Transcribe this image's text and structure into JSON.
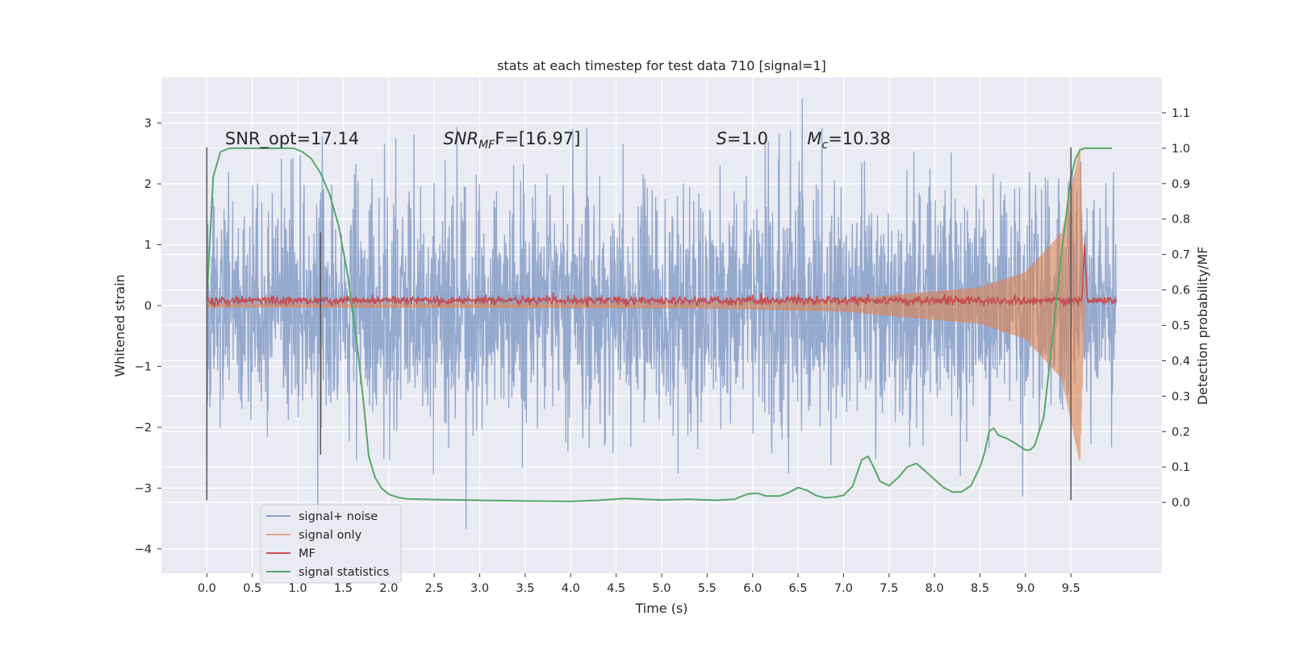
{
  "chart_data": {
    "type": "line",
    "title": "stats at each timestep for test data 710 [signal=1]",
    "xlabel": "Time (s)",
    "ylabel": "Whitened strain",
    "y2label": "Detection probability/MF",
    "xlim": [
      -0.5,
      10.5
    ],
    "ylim": [
      -4.4,
      3.75
    ],
    "y2lim": [
      -0.2,
      1.2
    ],
    "x_ticks": [
      "0.0",
      "0.5",
      "1.0",
      "1.5",
      "2.0",
      "2.5",
      "3.0",
      "3.5",
      "4.0",
      "4.5",
      "5.0",
      "5.5",
      "6.0",
      "6.5",
      "7.0",
      "7.5",
      "8.0",
      "8.5",
      "9.0",
      "9.5"
    ],
    "y_ticks": [
      "3",
      "2",
      "1",
      "0",
      "−1",
      "−2",
      "−3",
      "−4"
    ],
    "y2_ticks": [
      "1.1",
      "1.0",
      "0.9",
      "0.8",
      "0.7",
      "0.6",
      "0.5",
      "0.4",
      "0.3",
      "0.2",
      "0.1",
      "0.0"
    ],
    "grid": true,
    "legend_position": "lower-left",
    "annotations": {
      "snr_opt": {
        "x": 0.2,
        "y": 2.65,
        "text": "SNR_opt=17.14"
      },
      "snr_mf": {
        "x": 2.6,
        "y": 2.65,
        "prefix": "SNR",
        "sub": "MF",
        "suffix": "F=[16.97]"
      },
      "s": {
        "x": 5.6,
        "y": 2.65,
        "prefix": "S",
        "suffix": "=1.0"
      },
      "mc": {
        "x": 6.6,
        "y": 2.65,
        "prefix": "M",
        "sub": "c",
        "suffix": "=10.38"
      }
    },
    "vertical_markers": [
      {
        "x": 0.0,
        "y_top": 2.6,
        "y_bottom": -3.2
      },
      {
        "x": 1.25,
        "y_top": 1.2,
        "y_bottom": -2.45
      },
      {
        "x": 9.5,
        "y_top": 2.6,
        "y_bottom": -3.2
      }
    ],
    "series": [
      {
        "name": "signal+ noise",
        "color": "#4c72b0",
        "axis": "left",
        "t_range": [
          0.0,
          10.0
        ],
        "typical_amplitude": 1.0
      },
      {
        "name": "signal only",
        "color": "#dd8452",
        "axis": "left",
        "t_range": [
          0.0,
          9.65
        ],
        "amplitude_points": [
          [
            0.0,
            0.03
          ],
          [
            5.5,
            0.05
          ],
          [
            7.0,
            0.1
          ],
          [
            8.5,
            0.3
          ],
          [
            9.0,
            0.55
          ],
          [
            9.4,
            1.2
          ],
          [
            9.6,
            2.6
          ],
          [
            9.65,
            0.0
          ]
        ]
      },
      {
        "name": "MF",
        "color": "#c44e52",
        "axis": "left",
        "t_range": [
          0.0,
          10.0
        ],
        "baseline": 0.08,
        "spike": {
          "x": 9.65,
          "y": 1.0
        }
      },
      {
        "name": "signal statistics",
        "color": "#55a868",
        "axis": "right",
        "x": [
          0.0,
          0.07,
          0.15,
          0.25,
          0.4,
          0.6,
          0.8,
          0.95,
          1.05,
          1.15,
          1.25,
          1.35,
          1.45,
          1.55,
          1.65,
          1.72,
          1.78,
          1.85,
          1.92,
          2.0,
          2.1,
          2.2,
          2.5,
          3.0,
          3.5,
          4.0,
          4.3,
          4.6,
          4.8,
          5.0,
          5.3,
          5.6,
          5.8,
          5.95,
          6.05,
          6.15,
          6.3,
          6.4,
          6.5,
          6.6,
          6.7,
          6.8,
          6.9,
          7.0,
          7.1,
          7.2,
          7.27,
          7.33,
          7.4,
          7.5,
          7.6,
          7.7,
          7.8,
          7.9,
          8.0,
          8.1,
          8.2,
          8.3,
          8.4,
          8.5,
          8.55,
          8.6,
          8.65,
          8.7,
          8.8,
          8.9,
          9.0,
          9.05,
          9.1,
          9.2,
          9.3,
          9.4,
          9.5,
          9.55,
          9.6,
          9.65,
          9.7,
          9.8,
          9.9,
          9.95
        ],
        "values": [
          0.57,
          0.92,
          0.99,
          1.0,
          1.0,
          1.0,
          1.0,
          1.0,
          0.99,
          0.97,
          0.93,
          0.87,
          0.78,
          0.64,
          0.45,
          0.29,
          0.13,
          0.07,
          0.04,
          0.023,
          0.014,
          0.01,
          0.008,
          0.006,
          0.004,
          0.003,
          0.006,
          0.011,
          0.009,
          0.007,
          0.009,
          0.006,
          0.009,
          0.024,
          0.026,
          0.018,
          0.018,
          0.028,
          0.042,
          0.034,
          0.019,
          0.013,
          0.015,
          0.02,
          0.046,
          0.12,
          0.13,
          0.1,
          0.06,
          0.047,
          0.07,
          0.1,
          0.11,
          0.088,
          0.065,
          0.042,
          0.029,
          0.03,
          0.047,
          0.1,
          0.14,
          0.2,
          0.21,
          0.19,
          0.18,
          0.165,
          0.148,
          0.148,
          0.16,
          0.24,
          0.47,
          0.71,
          0.92,
          0.97,
          0.995,
          1.0,
          1.0,
          1.0,
          1.0,
          1.0
        ]
      }
    ]
  }
}
